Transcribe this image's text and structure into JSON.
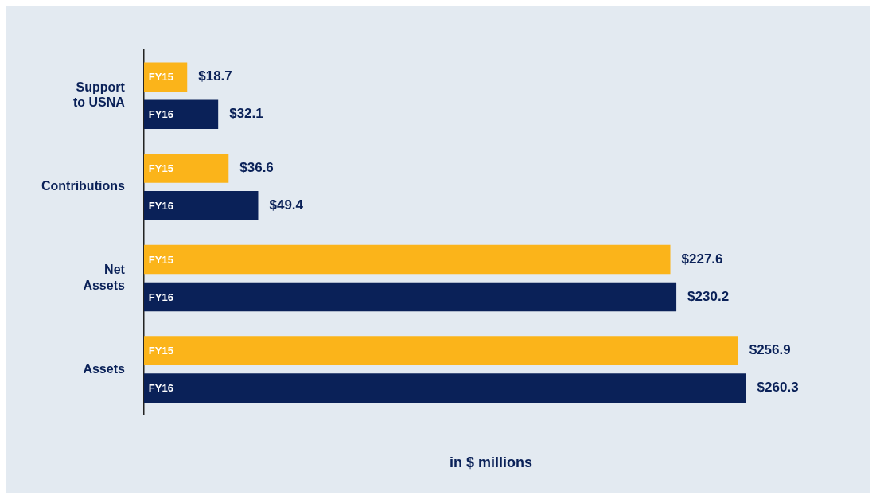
{
  "chart_data": {
    "type": "bar",
    "orientation": "horizontal",
    "xlabel": "in $ millions",
    "tick_labels": "y",
    "grid": false,
    "categories": [
      "Support to USNA",
      "Contributions",
      "Net Assets",
      "Assets"
    ],
    "series": [
      {
        "name": "FY15",
        "color": "#fbb41a",
        "values": [
          18.7,
          36.6,
          227.6,
          256.9
        ],
        "value_labels": [
          "$18.7",
          "$36.6",
          "$227.6",
          "$256.9"
        ]
      },
      {
        "name": "FY16",
        "color": "#0a2158",
        "values": [
          32.1,
          49.4,
          230.2,
          260.3
        ],
        "value_labels": [
          "$32.1",
          "$49.4",
          "$230.2",
          "$260.3"
        ]
      }
    ]
  }
}
